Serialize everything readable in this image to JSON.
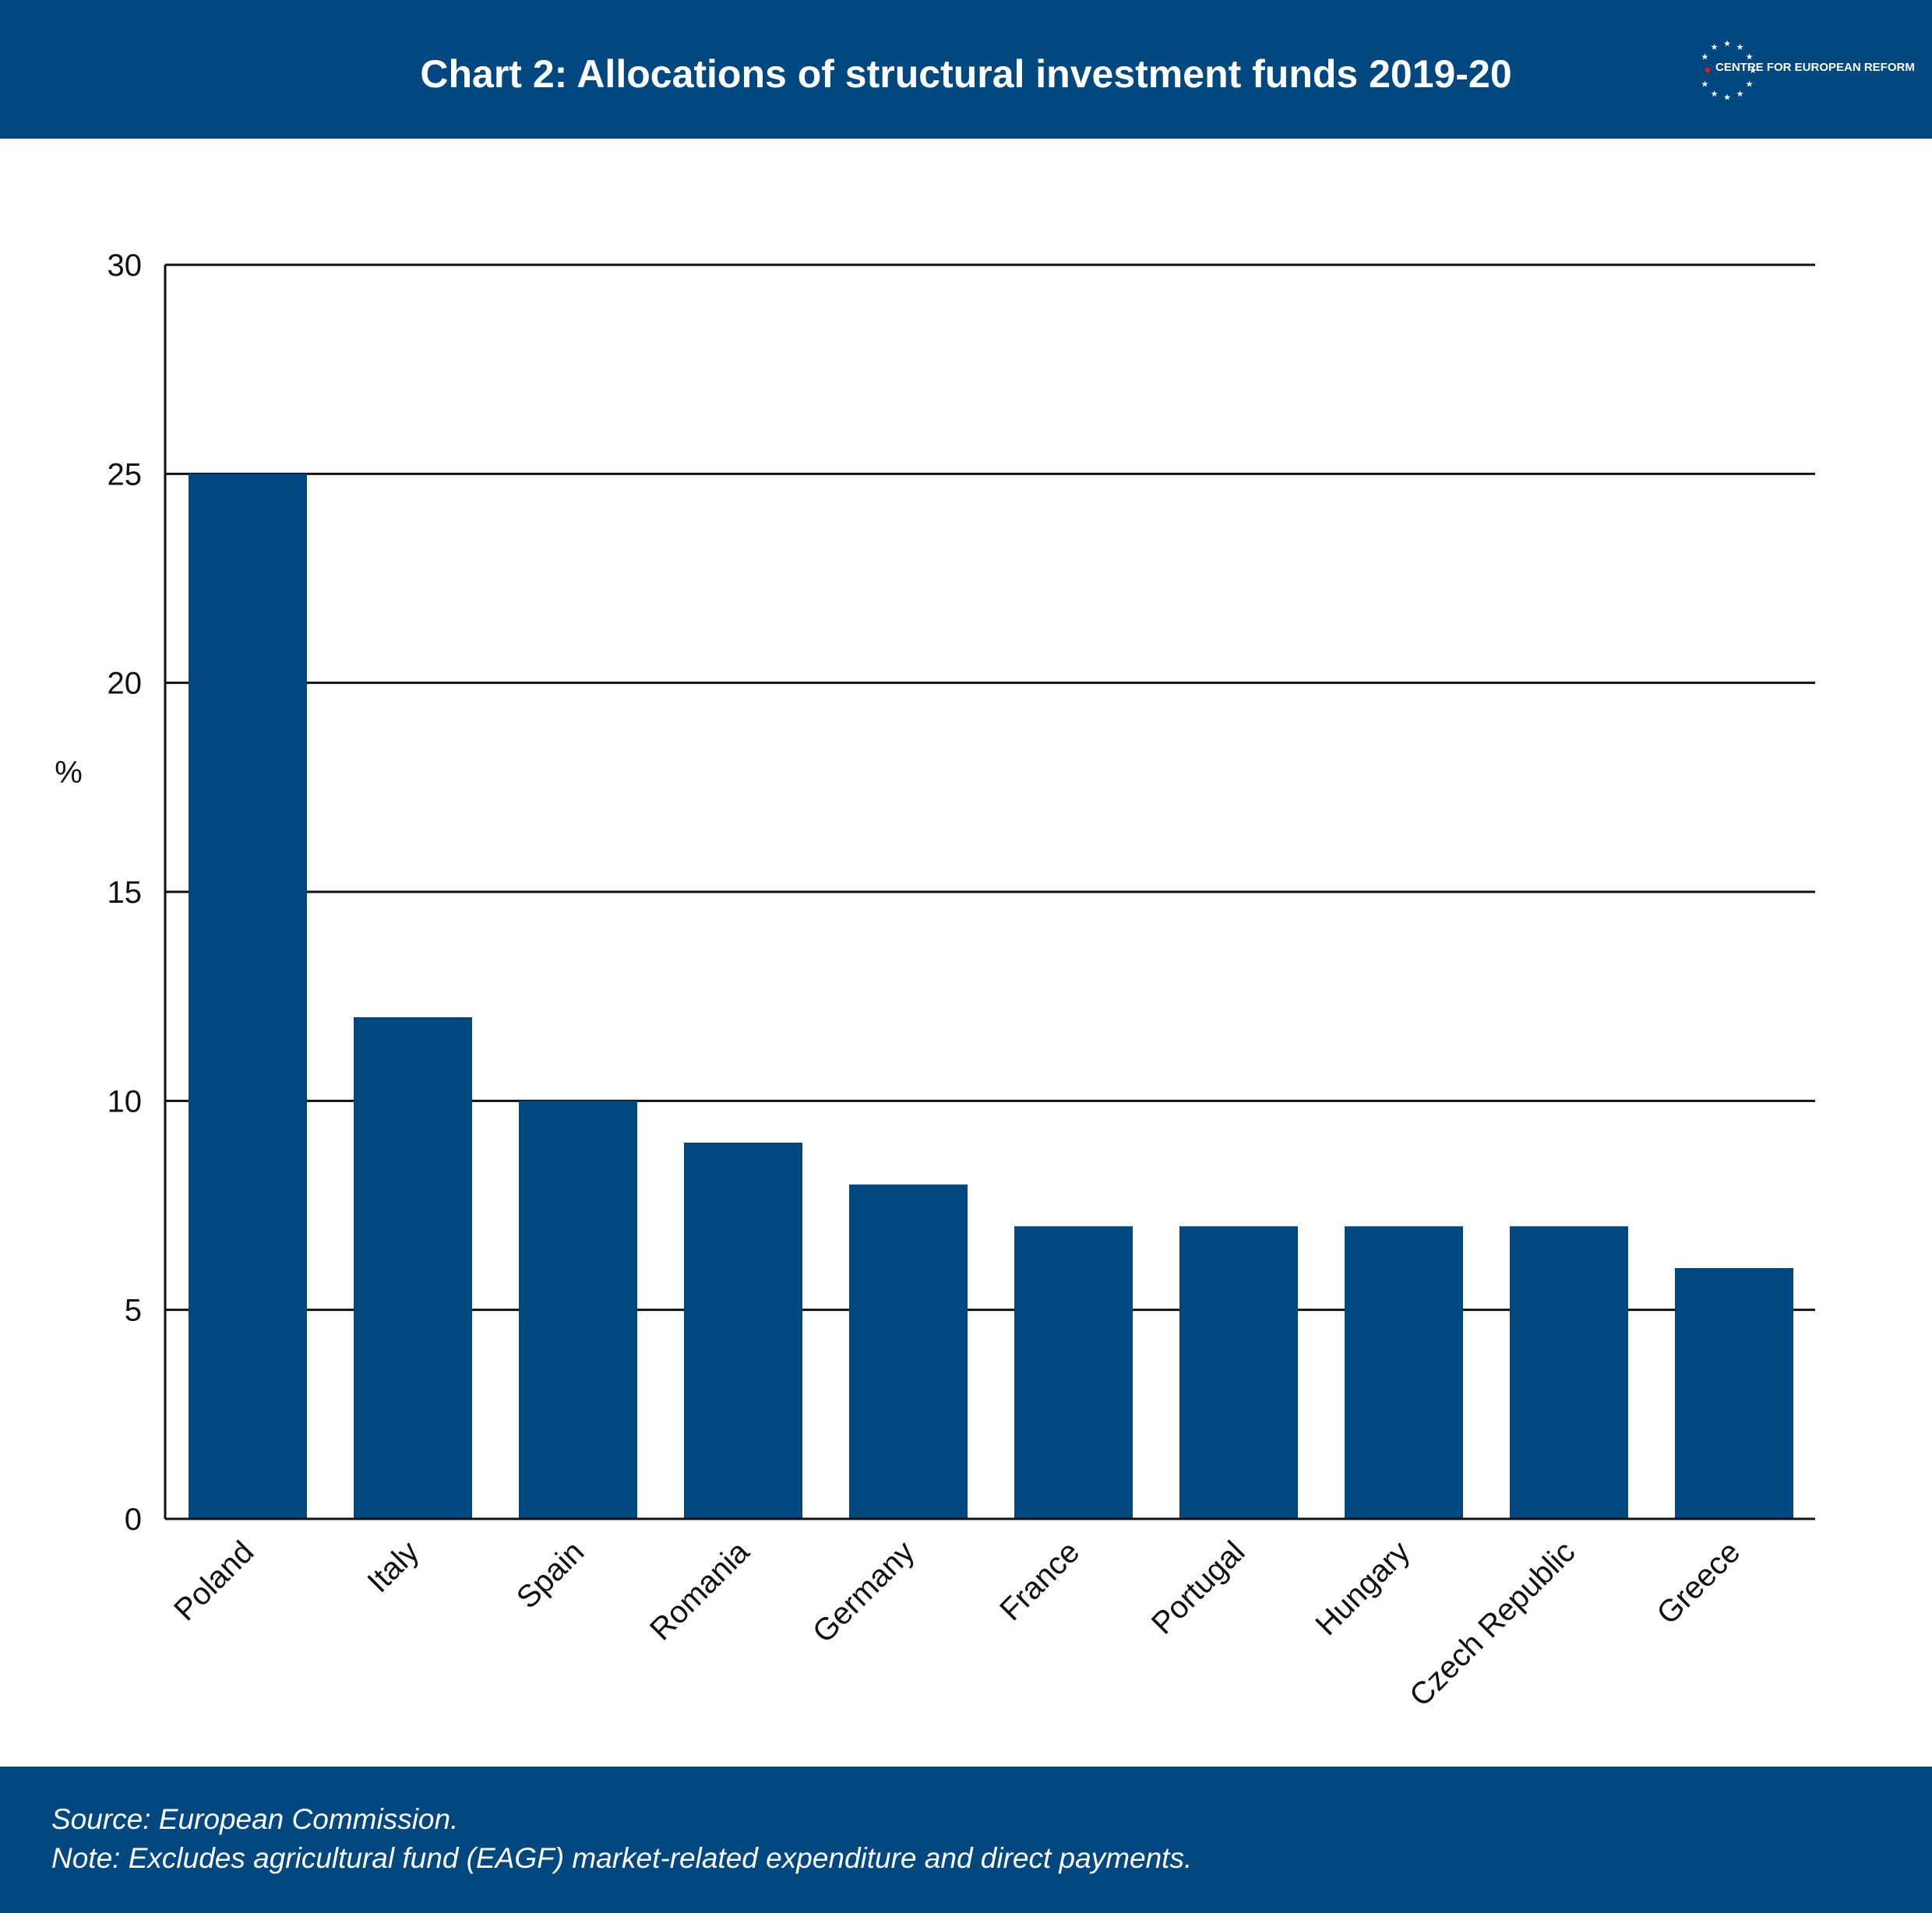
{
  "header": {
    "title": "Chart 2: Allocations of structural investment funds 2019-20",
    "logo_text": "CENTRE FOR EUROPEAN REFORM",
    "logo_icon": "eu-star-circle-icon"
  },
  "colors": {
    "brand_blue": "#00487f",
    "bar": "#00487f",
    "grid": "#111111",
    "logo_red": "#d0202e"
  },
  "chart_data": {
    "type": "bar",
    "title": "Chart 2: Allocations of structural investment funds 2019-20",
    "xlabel": "",
    "ylabel": "%",
    "categories": [
      "Poland",
      "Italy",
      "Spain",
      "Romania",
      "Germany",
      "France",
      "Portugal",
      "Hungary",
      "Czech Republic",
      "Greece"
    ],
    "values": [
      25,
      12,
      10,
      9,
      8,
      7,
      7,
      7,
      7,
      6
    ],
    "ylim": [
      0,
      30
    ],
    "yticks": [
      0,
      5,
      10,
      15,
      20,
      25,
      30
    ],
    "grid": "horizontal",
    "legend": "none"
  },
  "footer": {
    "source": "Source: European Commission.",
    "note": "Note: Excludes agricultural fund (EAGF) market-related expenditure and direct payments."
  }
}
